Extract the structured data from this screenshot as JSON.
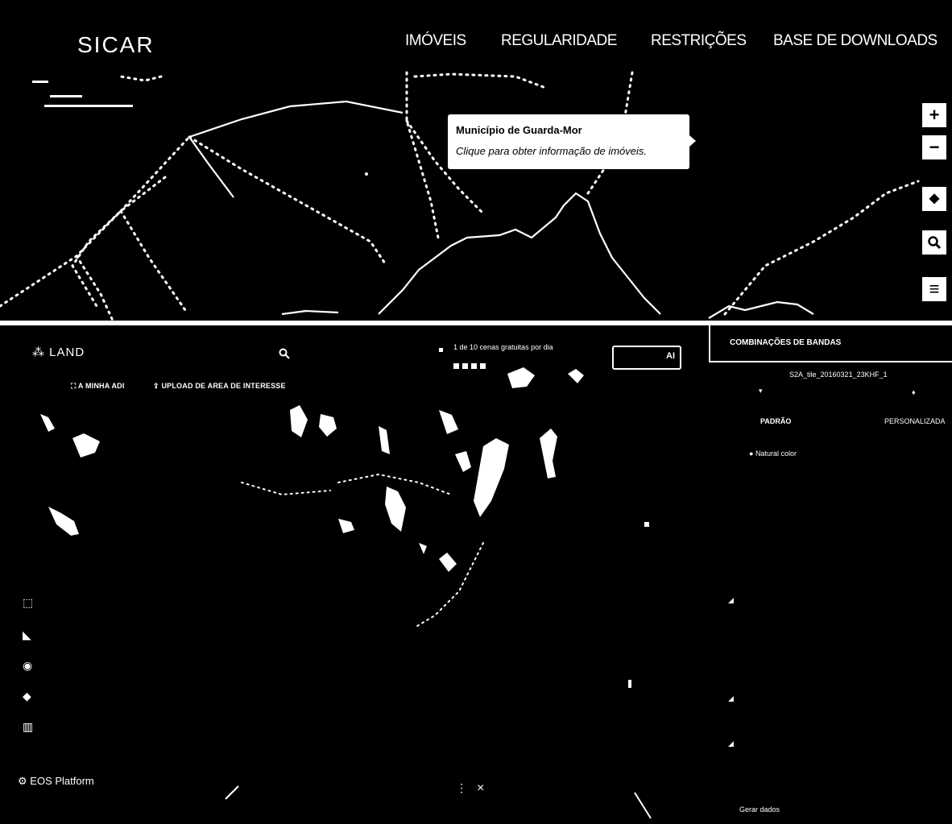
{
  "sicar": {
    "logo": "SICAR",
    "nav": [
      "IMÓVEIS",
      "REGULARIDADE",
      "RESTRIÇÕES",
      "BASE DE DOWNLOADS"
    ],
    "popup": {
      "title": "Município de Guarda-Mor",
      "subtitle": "Clique para obter informação de imóveis."
    },
    "map_controls": [
      {
        "name": "zoom-in-button",
        "glyph": "+"
      },
      {
        "name": "zoom-out-button",
        "glyph": "−"
      },
      {
        "name": "brazil-map-button",
        "glyph": "◆"
      },
      {
        "name": "search-button",
        "glyph": "🔍︎"
      },
      {
        "name": "menu-button",
        "glyph": "≡"
      }
    ]
  },
  "eos": {
    "logo": "LAND",
    "search_icon": "⚲",
    "my_aoi": "A MINHA ADI",
    "upload_aoi": "UPLOAD DE AREA DE INTERESSE",
    "scenes_text": "1 de 10 cenas gratuitas por dia",
    "login_label": "AI",
    "panel_title": "COMBINAÇÕES DE BANDAS",
    "scene_id": "S2A_tile_20160321_23KHF_1",
    "tab_default": "PADRÃO",
    "tab_custom": "PERSONALIZADA",
    "natural_color": "Natural color",
    "footer_text": "EOS Platform",
    "close_glyph": "×",
    "dots_glyph": "⋮",
    "bottom_right_text": "Gerar dados",
    "colors": {
      "background": "#000000",
      "foreground": "#ffffff"
    }
  }
}
